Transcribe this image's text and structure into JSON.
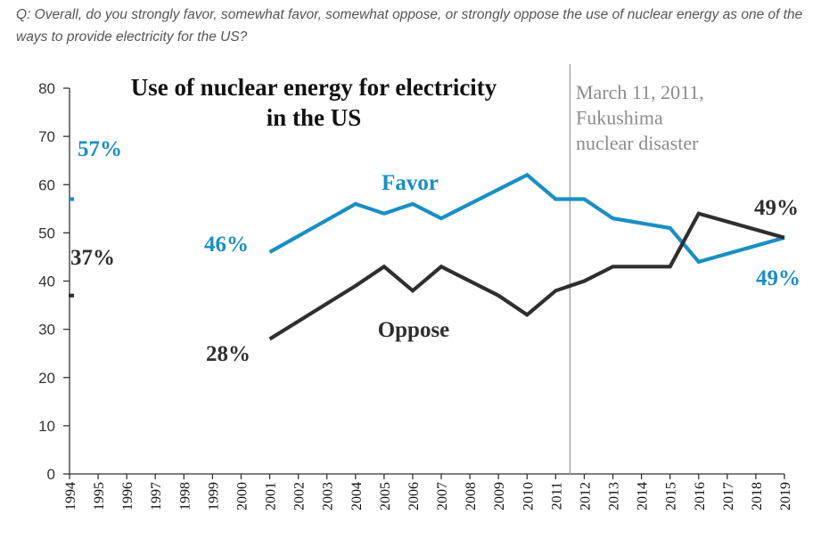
{
  "question": "Q: Overall, do you strongly favor, somewhat favor, somewhat oppose, or strongly oppose the use of nuclear energy as one of the ways to provide electricity for the US?",
  "colors": {
    "favor": "#1a8fc4",
    "oppose": "#2f2f2f",
    "annotation": "#8c8c8c"
  },
  "chart_data": {
    "type": "line",
    "title": [
      "Use of nuclear energy for electricity",
      "in the US"
    ],
    "xlabel": "",
    "ylabel": "",
    "ylim": [
      0,
      80
    ],
    "yticks": [
      0,
      10,
      20,
      30,
      40,
      50,
      60,
      70,
      80
    ],
    "xticks": [
      "1994",
      "1995",
      "1996",
      "1997",
      "1998",
      "1999",
      "2000",
      "2001",
      "2002",
      "2003",
      "2004",
      "2005",
      "2006",
      "2007",
      "2008",
      "2009",
      "2010",
      "2011",
      "2012",
      "2013",
      "2014",
      "2015",
      "2016",
      "2017",
      "2018",
      "2019"
    ],
    "grid": false,
    "series": [
      {
        "name": "Favor",
        "color": "#1a8fc4",
        "points": [
          [
            1994,
            57
          ],
          [
            2001,
            46
          ],
          [
            2004,
            56
          ],
          [
            2005,
            54
          ],
          [
            2006,
            56
          ],
          [
            2007,
            53
          ],
          [
            2010,
            62
          ],
          [
            2011,
            57
          ],
          [
            2012,
            57
          ],
          [
            2013,
            53
          ],
          [
            2015,
            51
          ],
          [
            2016,
            44
          ],
          [
            2019,
            49
          ]
        ]
      },
      {
        "name": "Oppose",
        "color": "#2f2f2f",
        "points": [
          [
            1994,
            37
          ],
          [
            2001,
            28
          ],
          [
            2004,
            39
          ],
          [
            2005,
            43
          ],
          [
            2006,
            38
          ],
          [
            2007,
            43
          ],
          [
            2009,
            37
          ],
          [
            2010,
            33
          ],
          [
            2011,
            38
          ],
          [
            2012,
            40
          ],
          [
            2013,
            43
          ],
          [
            2015,
            43
          ],
          [
            2016,
            54
          ],
          [
            2019,
            49
          ]
        ]
      }
    ],
    "data_labels": [
      {
        "text": "57%",
        "series": "Favor"
      },
      {
        "text": "37%",
        "series": "Oppose"
      },
      {
        "text": "46%",
        "series": "Favor"
      },
      {
        "text": "28%",
        "series": "Oppose"
      },
      {
        "text": "49%",
        "series": "Oppose"
      },
      {
        "text": "49%",
        "series": "Favor"
      }
    ],
    "event": {
      "x": 2011.5,
      "lines": [
        "March 11, 2011,",
        "Fukushima",
        "nuclear disaster"
      ]
    }
  }
}
